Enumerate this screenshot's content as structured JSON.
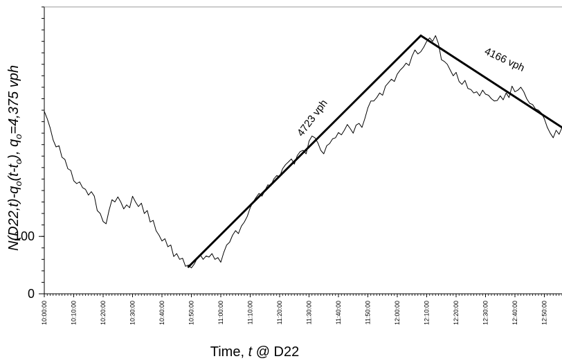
{
  "chart_data": {
    "type": "line",
    "xlabel_parts": [
      "Time, ",
      "t",
      " @ D22"
    ],
    "ylabel_parts": [
      "N(D22,t)-q",
      "o",
      "(t-t",
      "o",
      "),  q",
      "o",
      "=4,375 vph"
    ],
    "x_range": [
      "10:00:00",
      "12:56:00"
    ],
    "x_tick_labels": [
      "10:00:00",
      "10:10:00",
      "10:20:00",
      "10:30:00",
      "10:40:00",
      "10:50:00",
      "11:00:00",
      "11:10:00",
      "11:20:00",
      "11:30:00",
      "11:40:00",
      "11:50:00",
      "12:00:00",
      "12:10:00",
      "12:20:00",
      "12:30:00",
      "12:40:00",
      "12:50:00"
    ],
    "y_range": [
      0,
      500
    ],
    "y_tick_labels": [
      "0",
      "100"
    ],
    "y_tick_values": [
      0,
      100
    ],
    "grid": false,
    "series": [
      {
        "style": "thin",
        "x": [
          "10:00:00",
          "10:01:00",
          "10:02:00",
          "10:03:00",
          "10:04:00",
          "10:05:00",
          "10:06:00",
          "10:07:00",
          "10:08:00",
          "10:09:00",
          "10:10:00",
          "10:11:00",
          "10:12:00",
          "10:13:00",
          "10:14:00",
          "10:15:00",
          "10:16:00",
          "10:17:00",
          "10:18:00",
          "10:19:00",
          "10:20:00",
          "10:21:00",
          "10:22:00",
          "10:23:00",
          "10:24:00",
          "10:25:00",
          "10:26:00",
          "10:27:00",
          "10:28:00",
          "10:29:00",
          "10:30:00",
          "10:31:00",
          "10:32:00",
          "10:33:00",
          "10:34:00",
          "10:35:00",
          "10:36:00",
          "10:37:00",
          "10:38:00",
          "10:39:00",
          "10:40:00",
          "10:41:00",
          "10:42:00",
          "10:43:00",
          "10:44:00",
          "10:45:00",
          "10:46:00",
          "10:47:00",
          "10:48:00",
          "10:49:00",
          "10:50:00",
          "10:51:00",
          "10:52:00",
          "10:53:00",
          "10:54:00",
          "10:55:00",
          "10:56:00",
          "10:57:00",
          "10:58:00",
          "10:59:00",
          "11:00:00",
          "11:01:00",
          "11:02:00",
          "11:03:00",
          "11:04:00",
          "11:05:00",
          "11:06:00",
          "11:07:00",
          "11:08:00",
          "11:09:00",
          "11:10:00",
          "11:11:00",
          "11:12:00",
          "11:13:00",
          "11:14:00",
          "11:15:00",
          "11:16:00",
          "11:17:00",
          "11:18:00",
          "11:19:00",
          "11:20:00",
          "11:21:00",
          "11:22:00",
          "11:23:00",
          "11:24:00",
          "11:25:00",
          "11:26:00",
          "11:27:00",
          "11:28:00",
          "11:29:00",
          "11:30:00",
          "11:31:00",
          "11:32:00",
          "11:33:00",
          "11:34:00",
          "11:35:00",
          "11:36:00",
          "11:37:00",
          "11:38:00",
          "11:39:00",
          "11:40:00",
          "11:41:00",
          "11:42:00",
          "11:43:00",
          "11:44:00",
          "11:45:00",
          "11:46:00",
          "11:47:00",
          "11:48:00",
          "11:49:00",
          "11:50:00",
          "11:51:00",
          "11:52:00",
          "11:53:00",
          "11:54:00",
          "11:55:00",
          "11:56:00",
          "11:57:00",
          "11:58:00",
          "11:59:00",
          "12:00:00",
          "12:01:00",
          "12:02:00",
          "12:03:00",
          "12:04:00",
          "12:05:00",
          "12:06:00",
          "12:07:00",
          "12:08:00",
          "12:09:00",
          "12:10:00",
          "12:11:00",
          "12:12:00",
          "12:13:00",
          "12:14:00",
          "12:15:00",
          "12:16:00",
          "12:17:00",
          "12:18:00",
          "12:19:00",
          "12:20:00",
          "12:21:00",
          "12:22:00",
          "12:23:00",
          "12:24:00",
          "12:25:00",
          "12:26:00",
          "12:27:00",
          "12:28:00",
          "12:29:00",
          "12:30:00",
          "12:31:00",
          "12:32:00",
          "12:33:00",
          "12:34:00",
          "12:35:00",
          "12:36:00",
          "12:37:00",
          "12:38:00",
          "12:39:00",
          "12:40:00",
          "12:41:00",
          "12:42:00",
          "12:43:00",
          "12:44:00",
          "12:45:00",
          "12:46:00",
          "12:47:00",
          "12:48:00",
          "12:49:00",
          "12:50:00",
          "12:51:00",
          "12:52:00",
          "12:53:00",
          "12:54:00",
          "12:55:00",
          "12:56:00"
        ],
        "y": [
          318,
          305,
          289,
          268,
          256,
          258,
          238,
          234,
          218,
          215,
          197,
          192,
          195,
          185,
          182,
          172,
          178,
          170,
          145,
          140,
          126,
          122,
          145,
          164,
          160,
          169,
          160,
          148,
          155,
          150,
          170,
          160,
          152,
          158,
          140,
          145,
          125,
          128,
          110,
          102,
          92,
          96,
          82,
          85,
          65,
          70,
          60,
          62,
          48,
          50,
          45,
          52,
          62,
          68,
          60,
          66,
          64,
          70,
          60,
          63,
          55,
          72,
          85,
          90,
          102,
          110,
          105,
          118,
          125,
          135,
          150,
          160,
          168,
          175,
          170,
          180,
          190,
          188,
          200,
          206,
          204,
          218,
          225,
          230,
          235,
          226,
          241,
          248,
          250,
          244,
          266,
          275,
          272,
          263,
          250,
          244,
          258,
          262,
          270,
          272,
          281,
          277,
          285,
          295,
          288,
          280,
          294,
          297,
          290,
          306,
          324,
          336,
          336,
          342,
          350,
          346,
          362,
          368,
          374,
          370,
          383,
          390,
          395,
          402,
          398,
          414,
          425,
          418,
          422,
          430,
          440,
          446,
          440,
          450,
          436,
          408,
          405,
          400,
          390,
          380,
          386,
          370,
          365,
          372,
          358,
          356,
          350,
          352,
          345,
          355,
          348,
          346,
          340,
          336,
          337,
          345,
          338,
          350,
          342,
          362,
          352,
          355,
          360,
          352,
          340,
          332,
          330,
          322,
          320,
          315,
          305,
          290,
          280,
          272,
          285,
          278,
          290
        ]
      },
      {
        "style": "thick",
        "x": [
          "10:49:00",
          "12:08:00"
        ],
        "y": [
          47,
          450
        ]
      },
      {
        "style": "thick",
        "x": [
          "12:08:00",
          "12:56:00"
        ],
        "y": [
          450,
          290
        ]
      }
    ],
    "annotations": [
      {
        "text": "4723 vph",
        "x": "11:32:00",
        "y": 303,
        "angle": -53
      },
      {
        "text": "4166 vph",
        "x": "12:36:00",
        "y": 403,
        "angle": 25
      }
    ]
  }
}
